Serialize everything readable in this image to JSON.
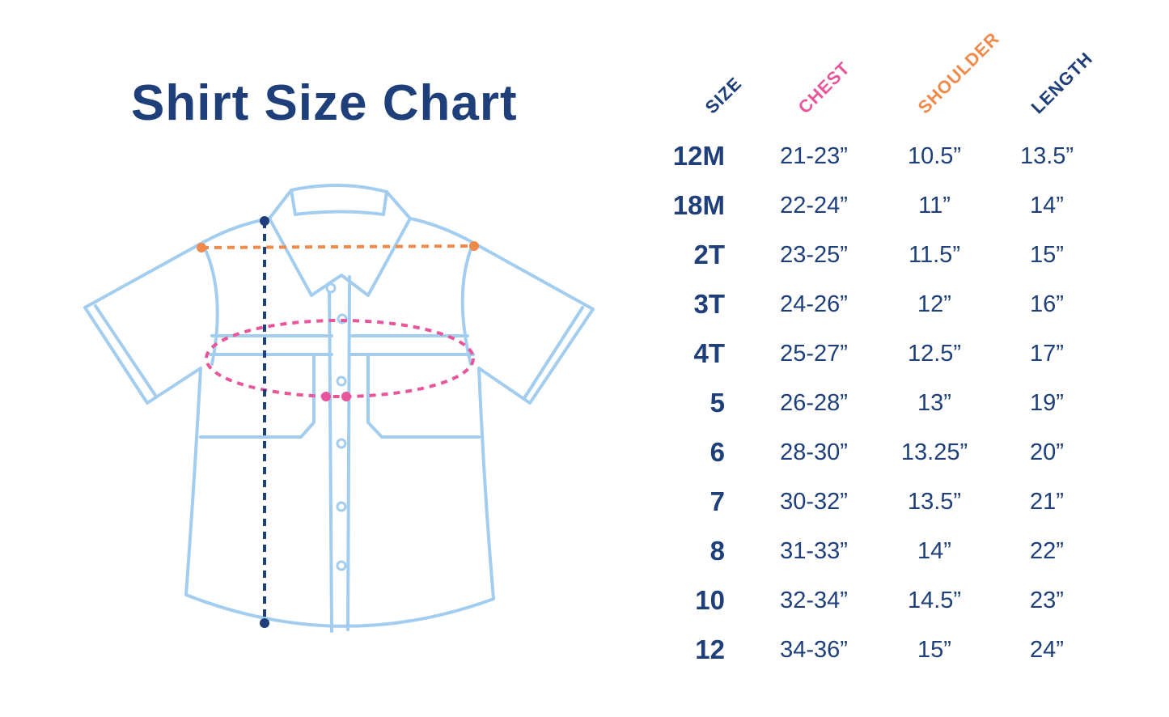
{
  "title": "Shirt Size Chart",
  "colors": {
    "navy": "#1e3f7a",
    "chest": "#e8559a",
    "shoulder": "#f08a4b",
    "shirt_outline": "#a3cdef"
  },
  "table": {
    "headers": {
      "size": "SIZE",
      "chest": "CHEST",
      "shoulder": "SHOULDER",
      "length": "LENGTH"
    },
    "rows": [
      {
        "size": "12M",
        "chest": "21-23”",
        "shoulder": "10.5”",
        "length": "13.5”"
      },
      {
        "size": "18M",
        "chest": "22-24”",
        "shoulder": "11”",
        "length": "14”"
      },
      {
        "size": "2T",
        "chest": "23-25”",
        "shoulder": "11.5”",
        "length": "15”"
      },
      {
        "size": "3T",
        "chest": "24-26”",
        "shoulder": "12”",
        "length": "16”"
      },
      {
        "size": "4T",
        "chest": "25-27”",
        "shoulder": "12.5”",
        "length": "17”"
      },
      {
        "size": "5",
        "chest": "26-28”",
        "shoulder": "13”",
        "length": "19”"
      },
      {
        "size": "6",
        "chest": "28-30”",
        "shoulder": "13.25”",
        "length": "20”"
      },
      {
        "size": "7",
        "chest": "30-32”",
        "shoulder": "13.5”",
        "length": "21”"
      },
      {
        "size": "8",
        "chest": "31-33”",
        "shoulder": "14”",
        "length": "22”"
      },
      {
        "size": "10",
        "chest": "32-34”",
        "shoulder": "14.5”",
        "length": "23”"
      },
      {
        "size": "12",
        "chest": "34-36”",
        "shoulder": "15”",
        "length": "24”"
      }
    ]
  }
}
